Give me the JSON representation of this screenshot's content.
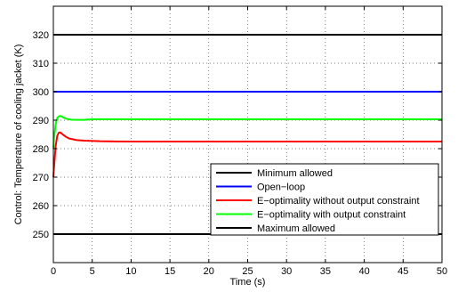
{
  "chart_data": {
    "type": "line",
    "title": "",
    "xlabel": "Time (s)",
    "ylabel": "Control: Temperature of cooling jacket (K)",
    "xlim": [
      0,
      50
    ],
    "ylim": [
      240,
      330
    ],
    "xticks": [
      0,
      5,
      10,
      15,
      20,
      25,
      30,
      35,
      40,
      45,
      50
    ],
    "yticks": [
      250,
      260,
      270,
      280,
      290,
      300,
      310,
      320
    ],
    "grid": true,
    "legend_position": "bottom-right",
    "series": [
      {
        "name": "Minimum allowed",
        "color": "#000000",
        "x": [
          0,
          50
        ],
        "y": [
          320,
          320
        ]
      },
      {
        "name": "Open−loop",
        "color": "#0000ff",
        "x": [
          0,
          50
        ],
        "y": [
          300,
          300
        ]
      },
      {
        "name": "E−optimality without output constraint",
        "color": "#ff0000",
        "x": [
          0,
          0.1,
          0.3,
          0.5,
          0.7,
          0.9,
          1.2,
          1.6,
          2.0,
          3.0,
          4.0,
          6.0,
          10.0,
          50.0
        ],
        "y": [
          270,
          274,
          281,
          284.5,
          285.6,
          285.7,
          285.0,
          284.2,
          283.6,
          283.0,
          282.8,
          282.6,
          282.5,
          282.5
        ]
      },
      {
        "name": "E−optimality with output constraint",
        "color": "#00ff00",
        "x": [
          0,
          0.1,
          0.3,
          0.5,
          0.8,
          1.0,
          1.3,
          1.7,
          2.2,
          3.0,
          4.0,
          5.0,
          50.0
        ],
        "y": [
          280,
          284,
          288.5,
          290.8,
          291.5,
          291.4,
          290.9,
          290.5,
          290.2,
          290.1,
          290.1,
          290.3,
          290.3
        ]
      },
      {
        "name": "Maximum allowed",
        "color": "#000000",
        "x": [
          0,
          50
        ],
        "y": [
          250,
          250
        ]
      }
    ]
  }
}
